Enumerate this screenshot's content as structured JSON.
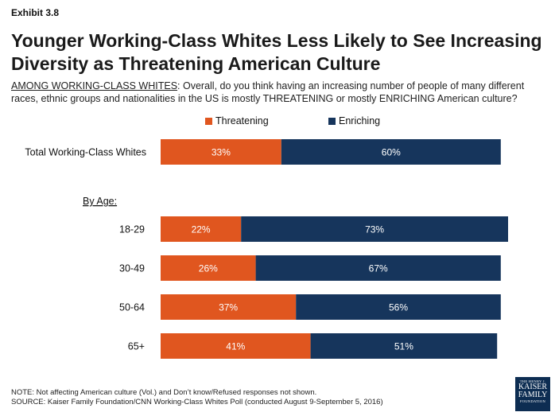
{
  "exhibit": "Exhibit 3.8",
  "title": "Younger Working-Class Whites Less Likely to See Increasing Diversity as Threatening American Culture",
  "subtitle_lead": "AMONG WORKING-CLASS WHITES",
  "subtitle_rest": ": Overall, do you think having an increasing number of people of many different races, ethnic groups and nationalities in the US is mostly THREATENING or mostly ENRICHING American culture?",
  "chart_data": {
    "type": "bar",
    "orientation": "horizontal",
    "stacked": true,
    "categories": [
      "Total Working-Class Whites",
      "18-29",
      "30-49",
      "50-64",
      "65+"
    ],
    "group_label": "By Age:",
    "series": [
      {
        "name": "Threatening",
        "values": [
          33,
          22,
          26,
          37,
          41
        ],
        "color": "#e0561f"
      },
      {
        "name": "Enriching",
        "values": [
          60,
          73,
          67,
          56,
          51
        ],
        "color": "#16355c"
      }
    ],
    "value_suffix": "%",
    "xlim": [
      0,
      100
    ],
    "legend_position": "top",
    "grid": false
  },
  "footnotes": {
    "note": "NOTE: Not affecting American culture (Vol.) and Don’t know/Refused responses not shown.",
    "source": "SOURCE: Kaiser Family Foundation/CNN Working-Class Whites Poll (conducted August 9-September 5, 2016)"
  },
  "logo": {
    "line1": "THE HENRY J.",
    "line2": "KAISER",
    "line3": "FAMILY",
    "line4": "FOUNDATION"
  }
}
